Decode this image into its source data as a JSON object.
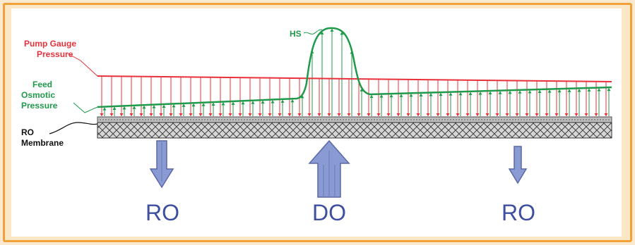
{
  "labels": {
    "pump_gauge_line1": "Pump Gauge",
    "pump_gauge_line2": "Pressure",
    "feed_line1": "Feed",
    "feed_line2": "Osmotic",
    "feed_line3": "Pressure",
    "ro_membrane_line1": "RO",
    "ro_membrane_line2": "Membrane",
    "hs": "HS"
  },
  "flows": [
    {
      "label": "RO",
      "direction": "down"
    },
    {
      "label": "DO",
      "direction": "up"
    },
    {
      "label": "RO",
      "direction": "down"
    }
  ],
  "colors": {
    "pump_pressure": "#e8313a",
    "osmotic_pressure": "#1f9a4a",
    "membrane": "#555555",
    "arrow_fill": "#8a9ad2",
    "arrow_stroke": "#5a68a8",
    "flow_label": "#3f4fa0",
    "frame_border": "#f0a13a",
    "frame_bg": "#fbe6c6"
  }
}
